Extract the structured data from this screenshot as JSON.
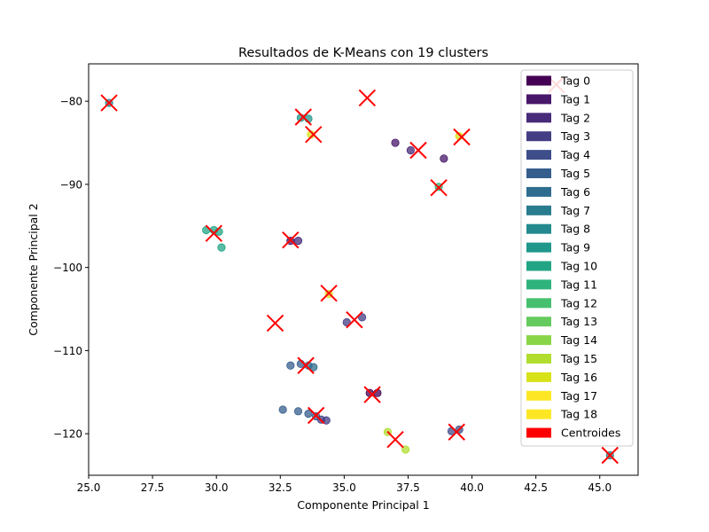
{
  "chart_data": {
    "type": "scatter",
    "title": "Resultados de K-Means con 19 clusters",
    "xlabel": "Componente Principal 1",
    "ylabel": "Componente Principal 2",
    "xlim": [
      25.0,
      46.5
    ],
    "ylim": [
      -125.0,
      -75.5
    ],
    "xticks": [
      25.0,
      27.5,
      30.0,
      32.5,
      35.0,
      37.5,
      40.0,
      42.5,
      45.0
    ],
    "xtick_labels": [
      "25.0",
      "27.5",
      "30.0",
      "32.5",
      "35.0",
      "37.5",
      "40.0",
      "42.5",
      "45.0"
    ],
    "yticks": [
      -80,
      -90,
      -100,
      -110,
      -120
    ],
    "ytick_labels": [
      "−80",
      "−90",
      "−100",
      "−110",
      "−120"
    ],
    "grid": false,
    "legend_position": "upper-right",
    "legend": [
      {
        "label": "Tag 0",
        "color": "#440154"
      },
      {
        "label": "Tag 1",
        "color": "#481769"
      },
      {
        "label": "Tag 2",
        "color": "#472a7a"
      },
      {
        "label": "Tag 3",
        "color": "#433d84"
      },
      {
        "label": "Tag 4",
        "color": "#3d4e8a"
      },
      {
        "label": "Tag 5",
        "color": "#355e8d"
      },
      {
        "label": "Tag 6",
        "color": "#2e6d8e"
      },
      {
        "label": "Tag 7",
        "color": "#297b8e"
      },
      {
        "label": "Tag 8",
        "color": "#23898e"
      },
      {
        "label": "Tag 9",
        "color": "#1f978b"
      },
      {
        "label": "Tag 10",
        "color": "#21a585"
      },
      {
        "label": "Tag 11",
        "color": "#2eb37c"
      },
      {
        "label": "Tag 12",
        "color": "#46c06f"
      },
      {
        "label": "Tag 13",
        "color": "#65cb5e"
      },
      {
        "label": "Tag 14",
        "color": "#89d548"
      },
      {
        "label": "Tag 15",
        "color": "#b0dd2f"
      },
      {
        "label": "Tag 16",
        "color": "#d8e219"
      },
      {
        "label": "Tag 17",
        "color": "#fde725"
      },
      {
        "label": "Tag 18",
        "color": "#fde725"
      },
      {
        "label": "Centroides",
        "color": "#ff0000"
      }
    ],
    "points": [
      {
        "x": 25.8,
        "y": -80.2,
        "color": "#23898e"
      },
      {
        "x": 29.6,
        "y": -95.5,
        "color": "#21a585"
      },
      {
        "x": 29.9,
        "y": -95.5,
        "color": "#21a585"
      },
      {
        "x": 30.1,
        "y": -95.7,
        "color": "#21a585"
      },
      {
        "x": 30.2,
        "y": -97.6,
        "color": "#21a585"
      },
      {
        "x": 33.3,
        "y": -82.0,
        "color": "#1f978b"
      },
      {
        "x": 33.6,
        "y": -82.1,
        "color": "#1f978b"
      },
      {
        "x": 33.7,
        "y": -84.0,
        "color": "#d8e219"
      },
      {
        "x": 32.9,
        "y": -96.8,
        "color": "#481769"
      },
      {
        "x": 33.2,
        "y": -96.8,
        "color": "#472a7a"
      },
      {
        "x": 34.4,
        "y": -103.2,
        "color": "#d8e219"
      },
      {
        "x": 35.1,
        "y": -106.6,
        "color": "#433d84"
      },
      {
        "x": 35.7,
        "y": -106.0,
        "color": "#433d84"
      },
      {
        "x": 37.0,
        "y": -85.0,
        "color": "#481769"
      },
      {
        "x": 37.6,
        "y": -85.9,
        "color": "#472a7a"
      },
      {
        "x": 38.9,
        "y": -86.9,
        "color": "#481769"
      },
      {
        "x": 39.5,
        "y": -84.2,
        "color": "#d8e219"
      },
      {
        "x": 38.7,
        "y": -90.3,
        "color": "#2eb37c"
      },
      {
        "x": 32.9,
        "y": -111.8,
        "color": "#355e8d"
      },
      {
        "x": 33.3,
        "y": -111.6,
        "color": "#355e8d"
      },
      {
        "x": 33.6,
        "y": -111.8,
        "color": "#2e6d8e"
      },
      {
        "x": 33.8,
        "y": -112.0,
        "color": "#2e6d8e"
      },
      {
        "x": 36.0,
        "y": -115.1,
        "color": "#440154"
      },
      {
        "x": 36.3,
        "y": -115.1,
        "color": "#440154"
      },
      {
        "x": 32.6,
        "y": -117.1,
        "color": "#355e8d"
      },
      {
        "x": 33.2,
        "y": -117.3,
        "color": "#355e8d"
      },
      {
        "x": 33.6,
        "y": -117.6,
        "color": "#355e8d"
      },
      {
        "x": 33.9,
        "y": -117.9,
        "color": "#355e8d"
      },
      {
        "x": 34.1,
        "y": -118.3,
        "color": "#433d84"
      },
      {
        "x": 34.3,
        "y": -118.4,
        "color": "#433d84"
      },
      {
        "x": 36.7,
        "y": -119.8,
        "color": "#b0dd2f"
      },
      {
        "x": 37.4,
        "y": -121.9,
        "color": "#b0dd2f"
      },
      {
        "x": 39.2,
        "y": -119.7,
        "color": "#3d4e8a"
      },
      {
        "x": 39.5,
        "y": -119.5,
        "color": "#3d4e8a"
      },
      {
        "x": 45.4,
        "y": -122.6,
        "color": "#23898e"
      }
    ],
    "centroids": [
      {
        "x": 25.8,
        "y": -80.2
      },
      {
        "x": 29.9,
        "y": -95.9
      },
      {
        "x": 33.4,
        "y": -81.9
      },
      {
        "x": 33.8,
        "y": -84.0
      },
      {
        "x": 32.9,
        "y": -96.7
      },
      {
        "x": 34.4,
        "y": -103.1
      },
      {
        "x": 35.4,
        "y": -106.3
      },
      {
        "x": 32.3,
        "y": -106.7
      },
      {
        "x": 35.9,
        "y": -79.6
      },
      {
        "x": 37.9,
        "y": -85.9
      },
      {
        "x": 39.6,
        "y": -84.3
      },
      {
        "x": 38.7,
        "y": -90.4
      },
      {
        "x": 43.3,
        "y": -78.0
      },
      {
        "x": 33.5,
        "y": -111.8
      },
      {
        "x": 36.1,
        "y": -115.3
      },
      {
        "x": 33.9,
        "y": -117.8
      },
      {
        "x": 37.0,
        "y": -120.7
      },
      {
        "x": 39.4,
        "y": -119.8
      },
      {
        "x": 45.4,
        "y": -122.6
      }
    ]
  }
}
